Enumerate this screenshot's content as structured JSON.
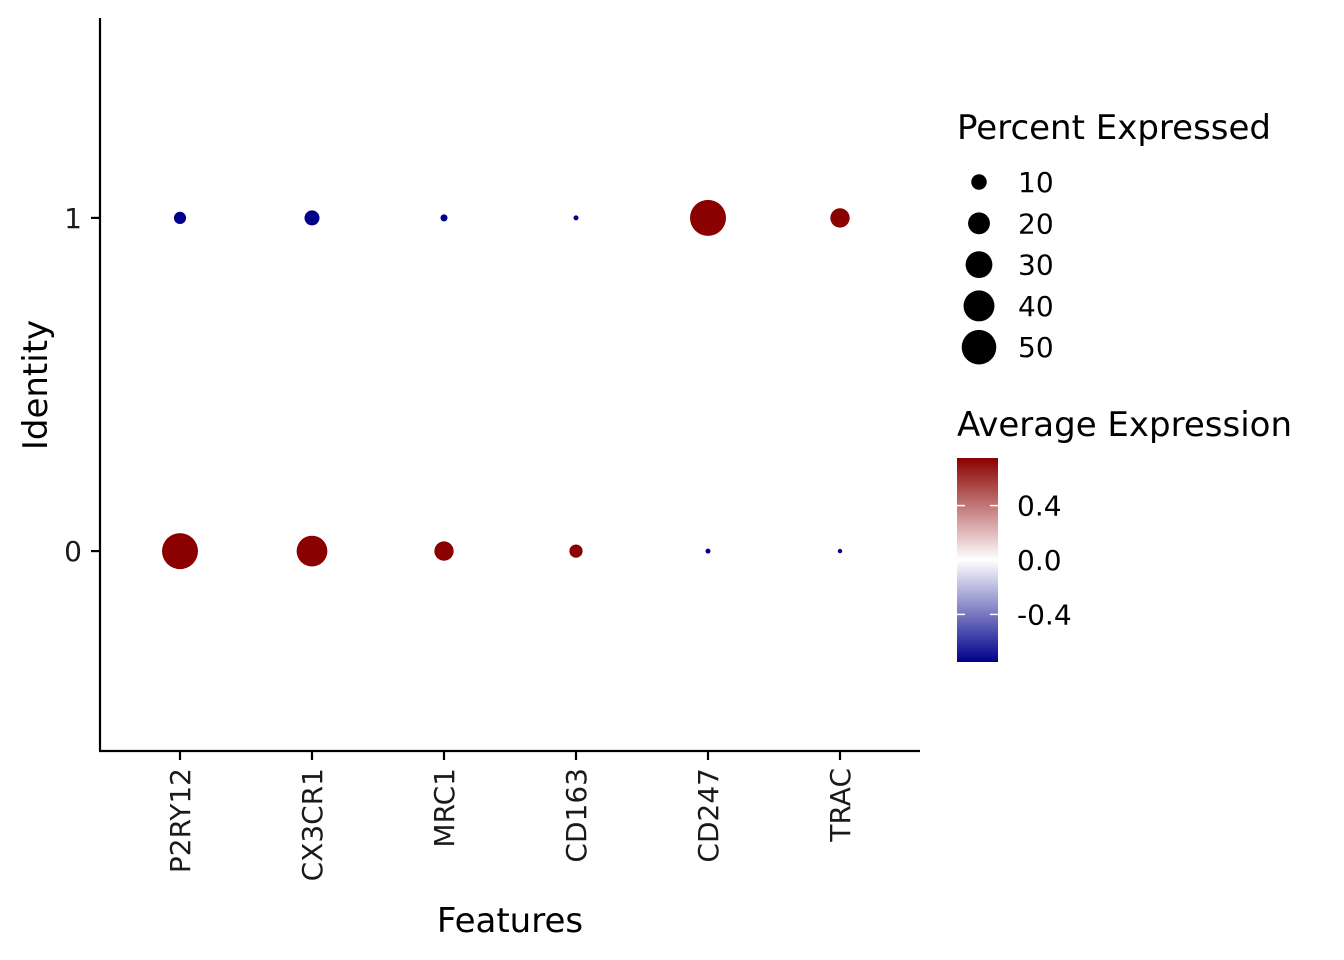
{
  "chart_data": {
    "type": "scatter",
    "subtype": "dot-plot",
    "xlabel": "Features",
    "ylabel": "Identity",
    "categories": [
      "P2RY12",
      "CX3CR1",
      "MRC1",
      "CD163",
      "CD247",
      "TRAC"
    ],
    "identities": [
      "0",
      "1"
    ],
    "ylim": [
      -0.6,
      1.6
    ],
    "grid": false,
    "legend_position": "right",
    "points": [
      {
        "feature": "P2RY12",
        "identity": "1",
        "pct_expressed": 6,
        "avg_expression": -0.75
      },
      {
        "feature": "CX3CR1",
        "identity": "1",
        "pct_expressed": 9,
        "avg_expression": -0.75
      },
      {
        "feature": "MRC1",
        "identity": "1",
        "pct_expressed": 2,
        "avg_expression": -0.75
      },
      {
        "feature": "CD163",
        "identity": "1",
        "pct_expressed": 1,
        "avg_expression": -0.75
      },
      {
        "feature": "CD247",
        "identity": "1",
        "pct_expressed": 52,
        "avg_expression": 0.75
      },
      {
        "feature": "TRAC",
        "identity": "1",
        "pct_expressed": 15,
        "avg_expression": 0.75
      },
      {
        "feature": "P2RY12",
        "identity": "0",
        "pct_expressed": 52,
        "avg_expression": 0.75
      },
      {
        "feature": "CX3CR1",
        "identity": "0",
        "pct_expressed": 38,
        "avg_expression": 0.75
      },
      {
        "feature": "MRC1",
        "identity": "0",
        "pct_expressed": 15,
        "avg_expression": 0.75
      },
      {
        "feature": "CD163",
        "identity": "0",
        "pct_expressed": 7,
        "avg_expression": 0.75
      },
      {
        "feature": "CD247",
        "identity": "0",
        "pct_expressed": 1,
        "avg_expression": -0.75
      },
      {
        "feature": "TRAC",
        "identity": "0",
        "pct_expressed": 0.5,
        "avg_expression": -0.75
      }
    ],
    "size_legend": {
      "title": "Percent Expressed",
      "values": [
        10,
        20,
        30,
        40,
        50
      ],
      "labels": [
        "10",
        "20",
        "30",
        "40",
        "50"
      ]
    },
    "color_legend": {
      "title": "Average Expression",
      "range": [
        -0.75,
        0.75
      ],
      "ticks": [
        0.4,
        0.0,
        -0.4
      ],
      "tick_labels": [
        "0.4",
        "0.0",
        "-0.4"
      ],
      "low_color": "#00008b",
      "mid_color": "#ffffff",
      "high_color": "#8b0000"
    }
  }
}
